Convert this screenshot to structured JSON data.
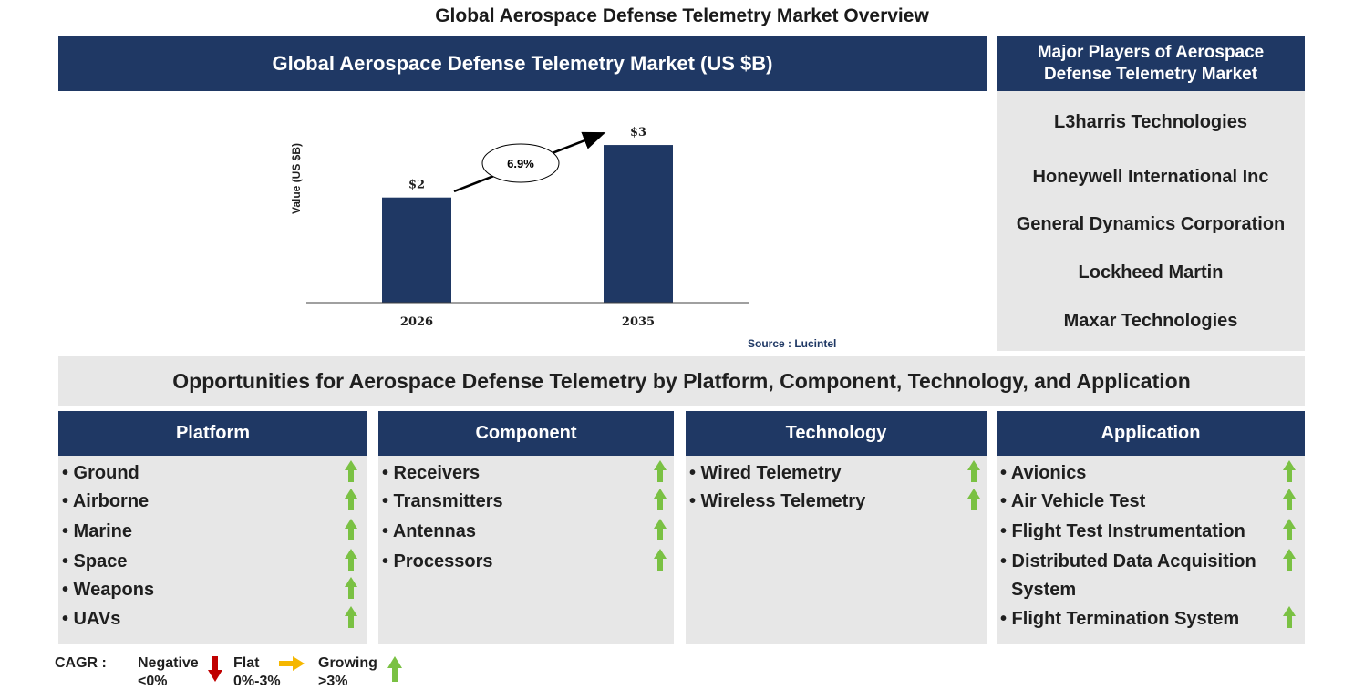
{
  "page_title": "Global Aerospace Defense Telemetry Market Overview",
  "chart_panel_title": "Global Aerospace Defense Telemetry Market (US $B)",
  "chart_data": {
    "type": "bar",
    "categories": [
      "2026",
      "2035"
    ],
    "values": [
      2,
      3
    ],
    "value_labels": [
      "$2",
      "$3"
    ],
    "ylabel": "Value (US $B)",
    "ylim": [
      0,
      3.4
    ],
    "cagr_label": "6.9%",
    "bar_color": "#1f3864",
    "grid": false
  },
  "source_text": "Source : Lucintel",
  "players": {
    "title": "Major Players of Aerospace Defense Telemetry Market",
    "items": [
      "L3harris Technologies",
      "Honeywell International Inc",
      "General Dynamics Corporation",
      "Lockheed Martin",
      "Maxar Technologies"
    ]
  },
  "opportunities_title": "Opportunities for Aerospace Defense Telemetry by Platform, Component, Technology, and Application",
  "segments": [
    {
      "title": "Platform",
      "items": [
        "• Ground",
        "• Airborne",
        "• Marine",
        "• Space",
        "• Weapons",
        "• UAVs"
      ],
      "trends": [
        "growing",
        "growing",
        "growing",
        "growing",
        "growing",
        "growing"
      ]
    },
    {
      "title": "Component",
      "items": [
        "• Receivers",
        "• Transmitters",
        "• Antennas",
        "• Processors"
      ],
      "trends": [
        "growing",
        "growing",
        "growing",
        "growing"
      ]
    },
    {
      "title": "Technology",
      "items": [
        "• Wired Telemetry",
        "• Wireless Telemetry"
      ],
      "trends": [
        "growing",
        "growing"
      ]
    },
    {
      "title": "Application",
      "items": [
        "• Avionics",
        "• Air Vehicle Test",
        "• Flight Test Instrumentation",
        "• Distributed Data Acquisition",
        "System",
        "• Flight Termination System"
      ],
      "trends": [
        "growing",
        "growing",
        "growing",
        "growing",
        null,
        "growing"
      ]
    }
  ],
  "legend": {
    "cagr_label": "CAGR :",
    "negative_label": "Negative",
    "negative_range": "<0%",
    "flat_label": "Flat",
    "flat_range": "0%-3%",
    "growing_label": "Growing",
    "growing_range": ">3%"
  },
  "colors": {
    "navy": "#1f3864",
    "panel_grey": "#e7e7e7",
    "growing_arrow": "#7ac143",
    "negative_arrow": "#c00000",
    "flat_arrow": "#f5b700"
  }
}
